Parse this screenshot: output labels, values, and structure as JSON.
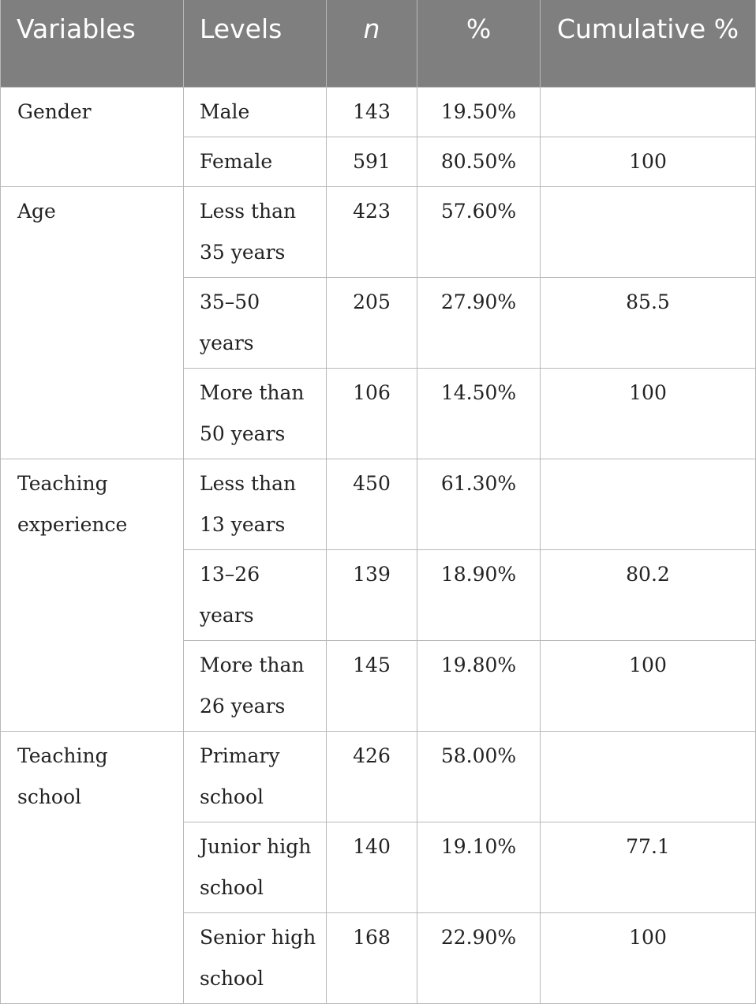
{
  "table": {
    "headers": {
      "variables": "Variables",
      "levels": "Levels",
      "n": "n",
      "percent": "%",
      "cumulative": "Cumulative %"
    },
    "groups": [
      {
        "variable": "Gender",
        "rows": [
          {
            "level": "Male",
            "n": "143",
            "percent": "19.50%",
            "cumulative": ""
          },
          {
            "level": "Female",
            "n": "591",
            "percent": "80.50%",
            "cumulative": "100"
          }
        ]
      },
      {
        "variable": "Age",
        "rows": [
          {
            "level": "Less than 35 years",
            "n": "423",
            "percent": "57.60%",
            "cumulative": ""
          },
          {
            "level": "35–50 years",
            "n": "205",
            "percent": "27.90%",
            "cumulative": "85.5"
          },
          {
            "level": "More than 50 years",
            "n": "106",
            "percent": "14.50%",
            "cumulative": "100"
          }
        ]
      },
      {
        "variable": "Teaching experience",
        "rows": [
          {
            "level": "Less than 13 years",
            "n": "450",
            "percent": "61.30%",
            "cumulative": ""
          },
          {
            "level": "13–26 years",
            "n": "139",
            "percent": "18.90%",
            "cumulative": "80.2"
          },
          {
            "level": "More than 26 years",
            "n": "145",
            "percent": "19.80%",
            "cumulative": "100"
          }
        ]
      },
      {
        "variable": "Teaching school",
        "rows": [
          {
            "level": "Primary school",
            "n": "426",
            "percent": "58.00%",
            "cumulative": ""
          },
          {
            "level": "Junior high school",
            "n": "140",
            "percent": "19.10%",
            "cumulative": "77.1"
          },
          {
            "level": "Senior high school",
            "n": "168",
            "percent": "22.90%",
            "cumulative": "100"
          }
        ]
      }
    ]
  }
}
